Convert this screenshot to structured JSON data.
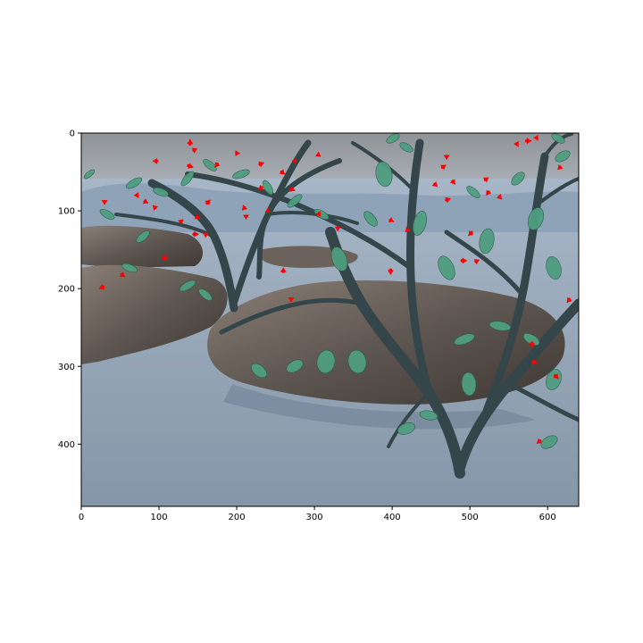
{
  "figure": {
    "image_size": {
      "width": 640,
      "height": 480
    },
    "x_ticks": [
      {
        "value": 0,
        "label": "0"
      },
      {
        "value": 100,
        "label": "100"
      },
      {
        "value": 200,
        "label": "200"
      },
      {
        "value": 300,
        "label": "300"
      },
      {
        "value": 400,
        "label": "400"
      },
      {
        "value": 500,
        "label": "500"
      },
      {
        "value": 600,
        "label": "600"
      }
    ],
    "y_ticks": [
      {
        "value": 0,
        "label": "0"
      },
      {
        "value": 100,
        "label": "100"
      },
      {
        "value": 200,
        "label": "200"
      },
      {
        "value": 300,
        "label": "300"
      },
      {
        "value": 400,
        "label": "400"
      }
    ],
    "colors": {
      "sky": "#9aa0a6",
      "ground": "#9fb2c4",
      "rock": "#6b625c",
      "trunk": "#3a4a4c",
      "leaf": "#4f9e80",
      "arrow": "#ff0000"
    },
    "arrows": [
      [
        140,
        14,
        0,
        -6
      ],
      [
        145,
        22,
        4,
        -2
      ],
      [
        138,
        42,
        6,
        2
      ],
      [
        97,
        36,
        -5,
        0
      ],
      [
        200,
        26,
        4,
        0
      ],
      [
        175,
        40,
        -3,
        4
      ],
      [
        230,
        40,
        5,
        -2
      ],
      [
        232,
        70,
        -4,
        3
      ],
      [
        258,
        50,
        4,
        3
      ],
      [
        270,
        72,
        5,
        2
      ],
      [
        305,
        28,
        3,
        2
      ],
      [
        275,
        36,
        -4,
        0
      ],
      [
        162,
        90,
        4,
        -4
      ],
      [
        150,
        108,
        -4,
        2
      ],
      [
        145,
        130,
        6,
        0
      ],
      [
        160,
        130,
        0,
        4
      ],
      [
        128,
        114,
        3,
        -3
      ],
      [
        72,
        80,
        -4,
        0
      ],
      [
        82,
        88,
        4,
        2
      ],
      [
        95,
        96,
        -3,
        -3
      ],
      [
        30,
        88,
        0,
        4
      ],
      [
        28,
        198,
        -5,
        2
      ],
      [
        52,
        182,
        4,
        3
      ],
      [
        106,
        160,
        5,
        2
      ],
      [
        210,
        96,
        -3,
        3
      ],
      [
        212,
        107,
        0,
        4
      ],
      [
        240,
        100,
        3,
        2
      ],
      [
        260,
        178,
        0,
        -5
      ],
      [
        306,
        104,
        -4,
        0
      ],
      [
        330,
        122,
        0,
        4
      ],
      [
        398,
        112,
        4,
        2
      ],
      [
        420,
        124,
        -3,
        3
      ],
      [
        398,
        176,
        0,
        6
      ],
      [
        470,
        86,
        5,
        -2
      ],
      [
        478,
        62,
        3,
        4
      ],
      [
        502,
        128,
        -4,
        4
      ],
      [
        490,
        164,
        6,
        0
      ],
      [
        508,
        165,
        4,
        -2
      ],
      [
        520,
        60,
        4,
        -3
      ],
      [
        524,
        76,
        -3,
        4
      ],
      [
        538,
        82,
        3,
        3
      ],
      [
        560,
        14,
        -3,
        0
      ],
      [
        573,
        10,
        6,
        0
      ],
      [
        586,
        6,
        -4,
        0
      ],
      [
        616,
        44,
        -3,
        3
      ],
      [
        580,
        270,
        0,
        6
      ],
      [
        582,
        294,
        4,
        2
      ],
      [
        628,
        214,
        -3,
        4
      ],
      [
        610,
        312,
        4,
        4
      ],
      [
        590,
        396,
        -4,
        3
      ],
      [
        470,
        30,
        0,
        4
      ],
      [
        455,
        66,
        3,
        3
      ],
      [
        465,
        44,
        4,
        -3
      ],
      [
        270,
        214,
        0,
        3
      ]
    ]
  }
}
